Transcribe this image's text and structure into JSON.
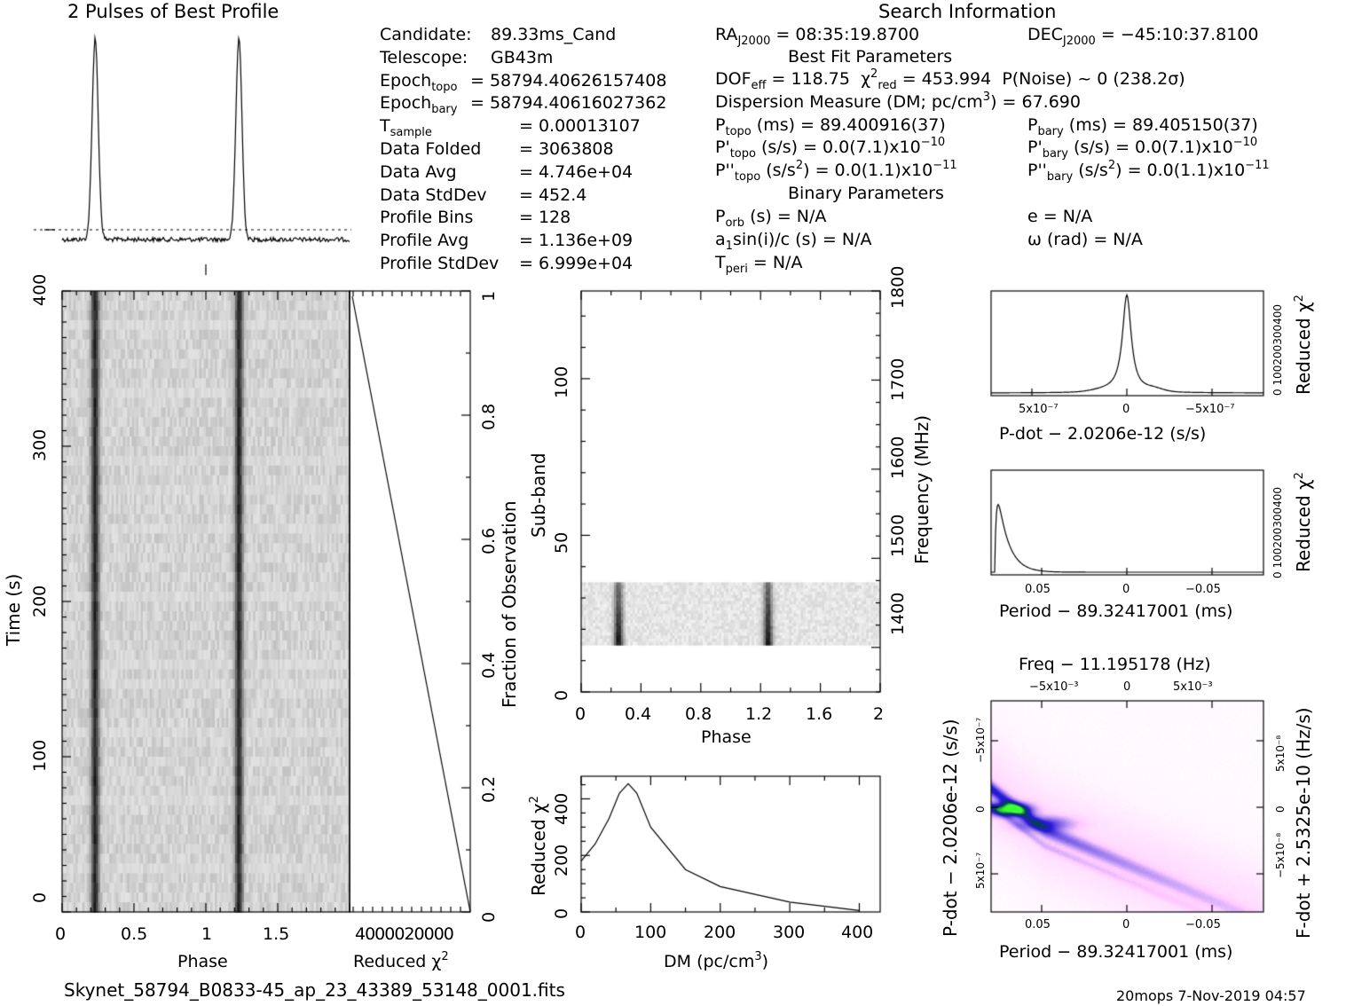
{
  "header": {
    "profile_title": "2 Pulses of Best Profile",
    "search_title": "Search Information",
    "best_fit_title": "Best Fit Parameters",
    "binary_title": "Binary Parameters",
    "footer_file": "Skynet_58794_B0833-45_ap_23_43389_53148_0001.fits",
    "footer_stamp": "20mops   7-Nov-2019 04:57"
  },
  "info_left": [
    {
      "key": "Candidate:",
      "val": "89.33ms_Cand"
    },
    {
      "key": "Telescope:",
      "val": "GB43m"
    },
    {
      "key": "Epoch",
      "sub": "topo",
      "val": "= 58794.40626157408"
    },
    {
      "key": "Epoch",
      "sub": "bary",
      "val": "= 58794.40616027362"
    },
    {
      "key": "T",
      "sub": "sample",
      "val": "=   0.00013107"
    },
    {
      "key": "Data Folded",
      "val": "=   3063808"
    },
    {
      "key": "Data Avg",
      "val": "=   4.746e+04"
    },
    {
      "key": "Data StdDev",
      "val": "=   452.4"
    },
    {
      "key": "Profile Bins",
      "val": "=   128"
    },
    {
      "key": "Profile Avg",
      "val": "=   1.136e+09"
    },
    {
      "key": "Profile StdDev",
      "val": "=   6.999e+04"
    }
  ],
  "info_mid": {
    "ra": "= 08:35:19.8700",
    "dec": "= −45:10:37.8100",
    "dof": "= 118.75",
    "chi2": "= 453.994",
    "pnoise": "P(Noise) ~ 0    (238.2σ)",
    "dm": "Dispersion Measure (DM; pc/cm",
    "dm_val": ") = 67.690",
    "ptopo": "(ms) =  89.400916(37)",
    "pbary": "(ms) =  89.405150(37)",
    "pdtopo": "(s/s) = 0.0(7.1)x10",
    "pdtopo_exp": "−10",
    "pdbary": "(s/s) = 0.0(7.1)x10",
    "pdbary_exp": "−10",
    "pddtopo": "(s/s",
    "pddtopo_rest": ") = 0.0(1.1)x10",
    "pddtopo_exp": "−11",
    "pddbary": "(s/s",
    "pddbary_rest": ") = 0.0(1.1)x10",
    "pddbary_exp": "−11",
    "porb": "(s) = N/A",
    "a1": "a",
    "a1_rest": "sin(i)/c (s) = N/A",
    "tperi": "= N/A",
    "ecc": "e = N/A",
    "omega": "ω (rad) = N/A"
  },
  "axes": {
    "phase": "Phase",
    "time": "Time (s)",
    "reduced_chi2": "Reduced χ",
    "fraction": "Fraction of Observation",
    "subband": "Sub-band",
    "frequency": "Frequency (MHz)",
    "dm": "DM (pc/cm",
    "pdot_top": "P-dot − 2.0206e-12 (s/s)",
    "period_mid": "Period − 89.32417001 (ms)",
    "freq_title": "Freq − 11.195178 (Hz)",
    "pdot_left": "P-dot − 2.0206e-12 (s/s)",
    "fdot_right": "F-dot + 2.5325e-10 (Hz/s)",
    "period_bottom": "Period − 89.32417001 (ms)"
  },
  "ticks": {
    "phase_main": [
      "0",
      "0.5",
      "1",
      "1.5"
    ],
    "time_main": [
      "0",
      "100",
      "200",
      "300",
      "400"
    ],
    "chi_bottom": "4000020000",
    "fraction": [
      "0",
      "0.2",
      "0.4",
      "0.6",
      "0.8",
      "1"
    ],
    "subphase": [
      "0",
      "0.4",
      "0.8",
      "1.2",
      "1.6",
      "2"
    ],
    "subband": [
      "0",
      "50",
      "100"
    ],
    "freq": [
      "1400",
      "1500",
      "1600",
      "1700",
      "1800"
    ],
    "dm": [
      "0",
      "100",
      "200",
      "300",
      "400"
    ],
    "dmchi": [
      "0",
      "200",
      "400"
    ],
    "pdot_x": [
      "5x10⁻⁷",
      "0",
      "−5x10⁻⁷"
    ],
    "period_x": [
      "0.05",
      "0",
      "−0.05"
    ],
    "chi_small": "0 100200300400",
    "freq_top": [
      "−5x10⁻³",
      "0",
      "5x10⁻³"
    ],
    "pd_left": [
      "−5x10⁻⁷",
      "0",
      "5x10⁻⁷"
    ],
    "fd_right": [
      "5x10⁻⁸",
      "0",
      "−5x10⁻⁸"
    ]
  },
  "chart_data": [
    {
      "type": "line",
      "title": "2 Pulses of Best Profile",
      "x": [
        0,
        0.23,
        1,
        1.23,
        2
      ],
      "pulse_phases": [
        0.23,
        1.23
      ],
      "xlim": [
        0,
        2
      ]
    },
    {
      "type": "heatmap",
      "xlabel": "Phase",
      "ylabel": "Time (s)",
      "xlim": [
        0,
        2
      ],
      "ylim": [
        0,
        400
      ],
      "pulse_phases": [
        0.23,
        1.23
      ]
    },
    {
      "type": "line",
      "xlabel": "Reduced χ²",
      "ylabel": "Fraction of Observation",
      "x": [
        0,
        20000,
        40000
      ],
      "y": [
        0,
        0.5,
        1
      ]
    },
    {
      "type": "heatmap",
      "xlabel": "Phase",
      "ylabel": "Sub-band",
      "y2label": "Frequency (MHz)",
      "xlim": [
        0,
        2
      ],
      "ylim": [
        0,
        128
      ],
      "y2lim": [
        1350,
        1800
      ],
      "data_rows": [
        15,
        35
      ],
      "pulse_phases": [
        0.25,
        1.25
      ]
    },
    {
      "type": "line",
      "xlabel": "DM (pc/cm³)",
      "ylabel": "Reduced χ²",
      "x": [
        0,
        20,
        40,
        55,
        67.69,
        80,
        100,
        150,
        200,
        300,
        400
      ],
      "y": [
        180,
        240,
        330,
        420,
        454,
        420,
        300,
        150,
        90,
        35,
        5
      ],
      "xlim": [
        0,
        430
      ],
      "ylim": [
        0,
        480
      ]
    },
    {
      "type": "line",
      "xlabel": "P-dot − 2.0206e-12 (s/s)",
      "ylabel": "Reduced χ²",
      "x": [
        7e-07,
        3e-07,
        1e-07,
        0,
        -1e-07,
        -3e-07,
        -7e-07
      ],
      "y": [
        5,
        10,
        60,
        454,
        60,
        10,
        5
      ]
    },
    {
      "type": "line",
      "xlabel": "Period − 89.32417001 (ms)",
      "ylabel": "Reduced χ²",
      "x": [
        0.08,
        0.075,
        0.07,
        0.065,
        0.06,
        0.05,
        0,
        -0.08
      ],
      "y": [
        454,
        420,
        300,
        120,
        40,
        5,
        0,
        0
      ]
    },
    {
      "type": "heatmap",
      "title": "Freq − 11.195178 (Hz)",
      "xlabel": "Period − 89.32417001 (ms)",
      "ylabel": "P-dot − 2.0206e-12 (s/s)",
      "y2label": "F-dot + 2.5325e-10 (Hz/s)"
    }
  ]
}
